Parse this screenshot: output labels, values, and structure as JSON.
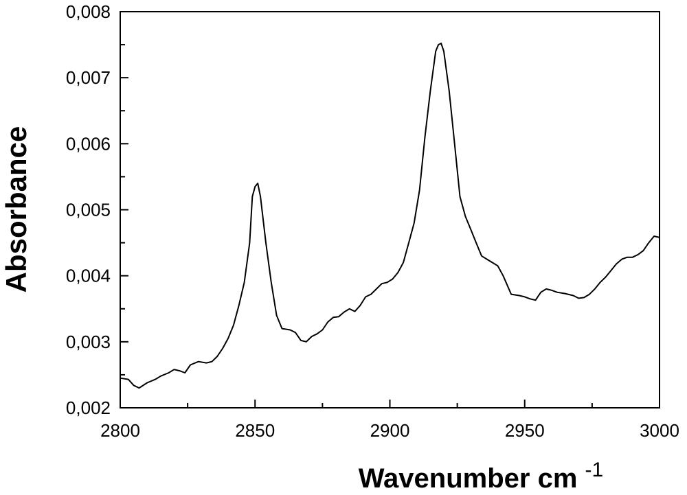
{
  "chart_data": {
    "type": "line",
    "title": "",
    "xlabel": "Wavenumber cm",
    "xlabel_superscript": "-1",
    "ylabel": "Absorbance",
    "xlim": [
      2800,
      3000
    ],
    "ylim": [
      0.002,
      0.008
    ],
    "x_ticks": [
      2800,
      2850,
      2900,
      2950,
      3000
    ],
    "x_tick_labels": [
      "2800",
      "2850",
      "2900",
      "2950",
      "3000"
    ],
    "y_ticks": [
      0.002,
      0.003,
      0.004,
      0.005,
      0.006,
      0.007,
      0.008
    ],
    "y_tick_labels": [
      "0,002",
      "0,003",
      "0,004",
      "0,005",
      "0,006",
      "0,007",
      "0,008"
    ],
    "grid": false,
    "legend": "none",
    "line_color": "#000000",
    "series": [
      {
        "x": [
          2800,
          2803,
          2805,
          2807,
          2810,
          2813,
          2815,
          2818,
          2820,
          2822,
          2824,
          2826,
          2829,
          2832,
          2834,
          2836,
          2838,
          2840,
          2842,
          2844,
          2846,
          2848,
          2849,
          2850,
          2851,
          2852,
          2854,
          2856,
          2858,
          2860,
          2863,
          2865,
          2867,
          2869,
          2871,
          2873,
          2875,
          2877,
          2879,
          2881,
          2883,
          2885,
          2887,
          2889,
          2891,
          2893,
          2895,
          2897,
          2899,
          2901,
          2903,
          2905,
          2907,
          2909,
          2911,
          2913,
          2915,
          2917,
          2918,
          2919,
          2920,
          2922,
          2924,
          2926,
          2928,
          2930,
          2932,
          2934,
          2936,
          2938,
          2940,
          2942,
          2945,
          2948,
          2950,
          2952,
          2954,
          2956,
          2958,
          2960,
          2962,
          2965,
          2968,
          2970,
          2972,
          2974,
          2976,
          2978,
          2980,
          2982,
          2984,
          2986,
          2988,
          2990,
          2992,
          2994,
          2996,
          2998,
          3000
        ],
        "y": [
          0.00245,
          0.00243,
          0.00234,
          0.0023,
          0.00238,
          0.00243,
          0.00248,
          0.00253,
          0.00258,
          0.00256,
          0.00253,
          0.00265,
          0.0027,
          0.00268,
          0.0027,
          0.00278,
          0.0029,
          0.00305,
          0.00325,
          0.00355,
          0.0039,
          0.0045,
          0.0052,
          0.00535,
          0.0054,
          0.0052,
          0.0045,
          0.0039,
          0.0034,
          0.0032,
          0.00318,
          0.00314,
          0.00302,
          0.003,
          0.00308,
          0.00312,
          0.00318,
          0.0033,
          0.00337,
          0.00338,
          0.00345,
          0.0035,
          0.00346,
          0.00355,
          0.00368,
          0.00372,
          0.0038,
          0.00388,
          0.0039,
          0.00395,
          0.00405,
          0.0042,
          0.0045,
          0.0048,
          0.0053,
          0.0061,
          0.0068,
          0.0074,
          0.0075,
          0.00752,
          0.0074,
          0.0068,
          0.006,
          0.0052,
          0.0049,
          0.0047,
          0.0045,
          0.0043,
          0.00425,
          0.0042,
          0.00415,
          0.004,
          0.00372,
          0.0037,
          0.00368,
          0.00365,
          0.00363,
          0.00375,
          0.0038,
          0.00378,
          0.00375,
          0.00373,
          0.0037,
          0.00366,
          0.00367,
          0.00372,
          0.0038,
          0.0039,
          0.00398,
          0.00408,
          0.00418,
          0.00425,
          0.00428,
          0.00428,
          0.00432,
          0.00438,
          0.0045,
          0.0046,
          0.00458
        ]
      }
    ]
  }
}
